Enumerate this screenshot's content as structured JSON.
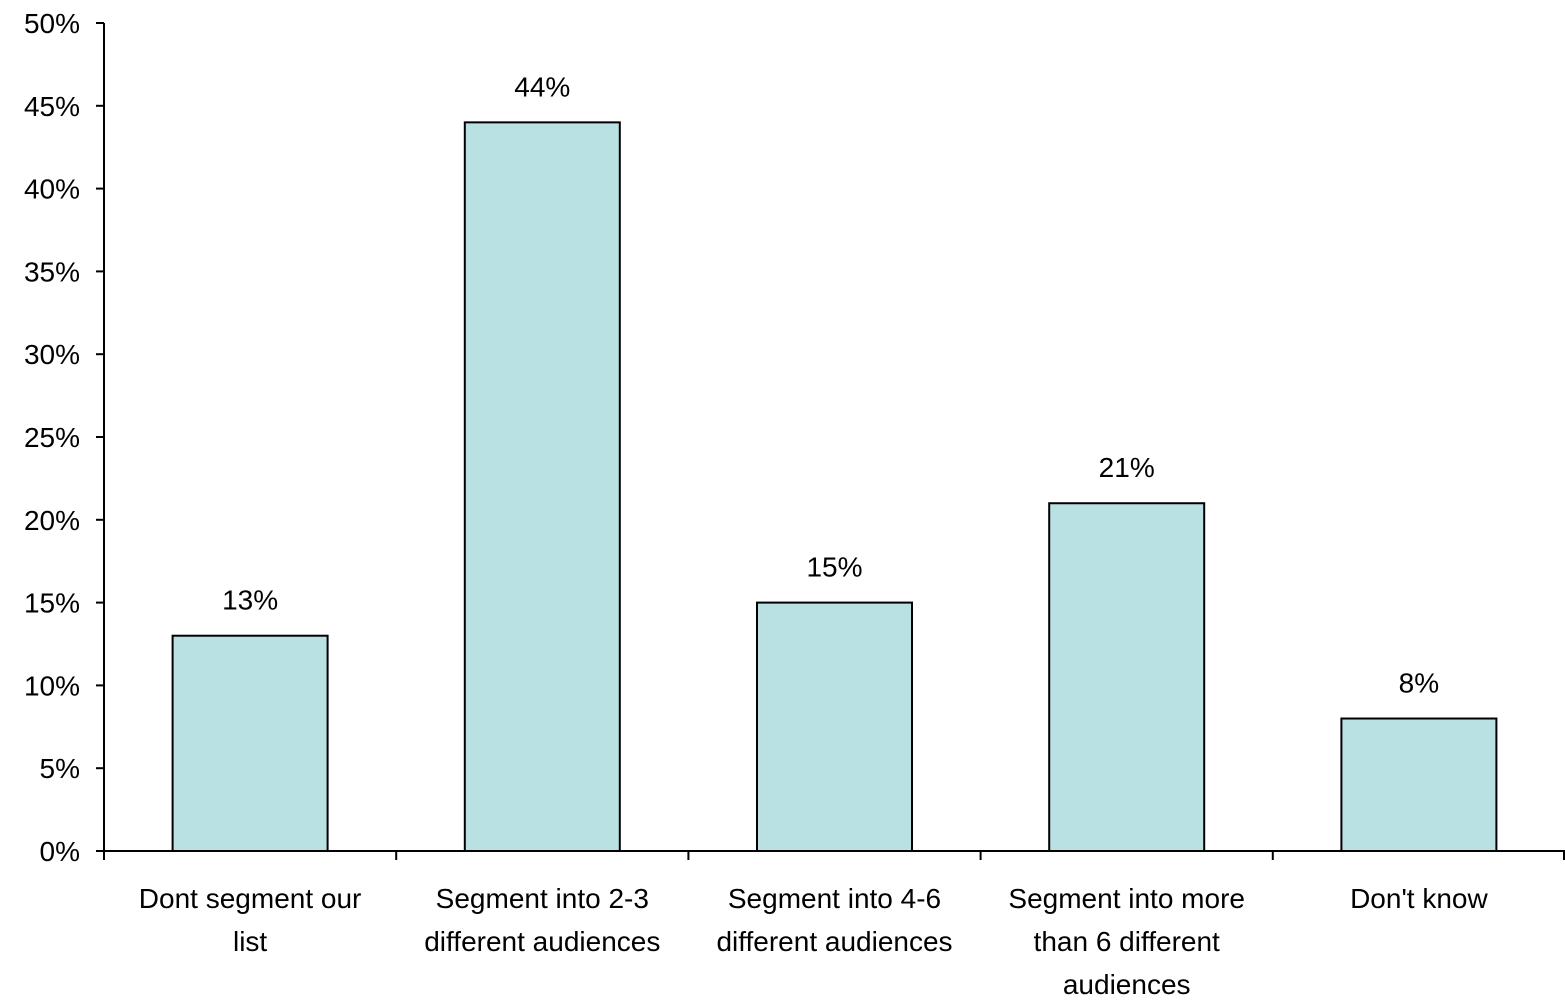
{
  "chart_data": {
    "type": "bar",
    "title": "",
    "xlabel": "",
    "ylabel": "",
    "categories": [
      [
        "Dont segment our",
        "list"
      ],
      [
        "Segment into 2-3",
        "different audiences"
      ],
      [
        "Segment into 4-6",
        "different audiences"
      ],
      [
        "Segment into more",
        "than 6 different",
        "audiences"
      ],
      [
        "Don't know"
      ]
    ],
    "values": [
      13,
      44,
      15,
      21,
      8
    ],
    "data_labels": [
      "13%",
      "44%",
      "15%",
      "21%",
      "8%"
    ],
    "ylim": [
      0,
      50
    ],
    "yticks": [
      0,
      5,
      10,
      15,
      20,
      25,
      30,
      35,
      40,
      45,
      50
    ],
    "ytick_labels": [
      "0%",
      "5%",
      "10%",
      "15%",
      "20%",
      "25%",
      "30%",
      "35%",
      "40%",
      "45%",
      "50%"
    ],
    "grid": false,
    "legend": "none",
    "bar_color": "#b9e0e3",
    "bar_edge_color": "#000000"
  }
}
